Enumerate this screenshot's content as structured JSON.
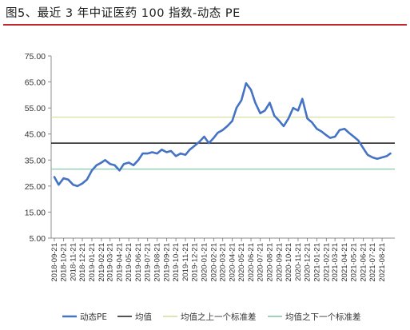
{
  "figure_title": "图5、最近 3 年中证医药 100 指数-动态 PE",
  "chart_data": {
    "type": "line",
    "title": "",
    "xlabel": "",
    "ylabel": "",
    "ylim": [
      5,
      75
    ],
    "y_ticks": [
      "75.00",
      "65.00",
      "55.00",
      "45.00",
      "35.00",
      "25.00",
      "15.00",
      "5.00"
    ],
    "x_ticks": [
      "2018-09-21",
      "2018-10-21",
      "2018-11-21",
      "2018-12-21",
      "2019-01-21",
      "2019-02-21",
      "2019-03-21",
      "2019-04-21",
      "2019-05-21",
      "2019-06-21",
      "2019-07-21",
      "2019-08-21",
      "2019-09-21",
      "2019-10-21",
      "2019-11-21",
      "2019-12-21",
      "2020-01-21",
      "2020-02-21",
      "2020-03-21",
      "2020-04-21",
      "2020-05-21",
      "2020-06-21",
      "2020-07-21",
      "2020-08-21",
      "2020-09-21",
      "2020-10-21",
      "2020-11-21",
      "2020-12-21",
      "2021-01-21",
      "2021-02-21",
      "2021-03-21",
      "2021-04-21",
      "2021-05-21",
      "2021-06-21",
      "2021-07-21",
      "2021-08-21"
    ],
    "grid": false,
    "legend_position": "bottom",
    "series": [
      {
        "name": "动态PE",
        "color": "#4472c4",
        "x": [
          "2018-09-21",
          "2018-10-05",
          "2018-10-21",
          "2018-11-05",
          "2018-11-21",
          "2018-12-05",
          "2018-12-21",
          "2019-01-05",
          "2019-01-21",
          "2019-02-05",
          "2019-02-21",
          "2019-03-05",
          "2019-03-21",
          "2019-04-05",
          "2019-04-21",
          "2019-05-05",
          "2019-05-21",
          "2019-06-05",
          "2019-06-21",
          "2019-07-05",
          "2019-07-21",
          "2019-08-05",
          "2019-08-21",
          "2019-09-05",
          "2019-09-21",
          "2019-10-05",
          "2019-10-21",
          "2019-11-05",
          "2019-11-21",
          "2019-12-05",
          "2019-12-21",
          "2020-01-05",
          "2020-01-21",
          "2020-02-05",
          "2020-02-21",
          "2020-03-05",
          "2020-03-21",
          "2020-04-05",
          "2020-04-21",
          "2020-05-05",
          "2020-05-21",
          "2020-06-05",
          "2020-06-21",
          "2020-07-05",
          "2020-07-21",
          "2020-08-05",
          "2020-08-21",
          "2020-09-05",
          "2020-09-21",
          "2020-10-05",
          "2020-10-21",
          "2020-11-05",
          "2020-11-21",
          "2020-12-05",
          "2020-12-21",
          "2021-01-05",
          "2021-01-21",
          "2021-02-05",
          "2021-02-21",
          "2021-03-05",
          "2021-03-21",
          "2021-04-05",
          "2021-04-21",
          "2021-05-05",
          "2021-05-21",
          "2021-06-05",
          "2021-06-21",
          "2021-07-05",
          "2021-07-21",
          "2021-08-05",
          "2021-08-21",
          "2021-09-05",
          "2021-09-17"
        ],
        "values": [
          28.5,
          25.5,
          28.0,
          27.5,
          25.5,
          25.0,
          26.0,
          27.5,
          31.0,
          33.0,
          34.0,
          35.0,
          33.5,
          33.0,
          31.0,
          33.5,
          34.0,
          33.0,
          35.0,
          37.5,
          37.5,
          38.0,
          37.5,
          39.0,
          38.0,
          38.5,
          36.5,
          37.5,
          37.0,
          39.0,
          40.5,
          42.0,
          44.0,
          41.5,
          43.5,
          45.5,
          46.5,
          48.0,
          50.0,
          55.0,
          58.0,
          64.5,
          62.0,
          57.0,
          53.0,
          54.0,
          57.0,
          52.0,
          50.0,
          48.0,
          51.0,
          55.0,
          54.0,
          58.5,
          51.0,
          49.5,
          47.0,
          46.0,
          44.5,
          43.5,
          44.0,
          46.5,
          47.0,
          45.5,
          44.0,
          42.5,
          39.5,
          37.0,
          36.0,
          35.5,
          36.0,
          36.5,
          37.5
        ]
      },
      {
        "name": "均值",
        "color": "#1a1a1a",
        "values": [
          41.5
        ]
      },
      {
        "name": "均值之上一个标准差",
        "color": "#d6dc9a",
        "values": [
          51.5
        ]
      },
      {
        "name": "均值之下一个标准差",
        "color": "#7cc7a0",
        "values": [
          31.5
        ]
      }
    ]
  }
}
